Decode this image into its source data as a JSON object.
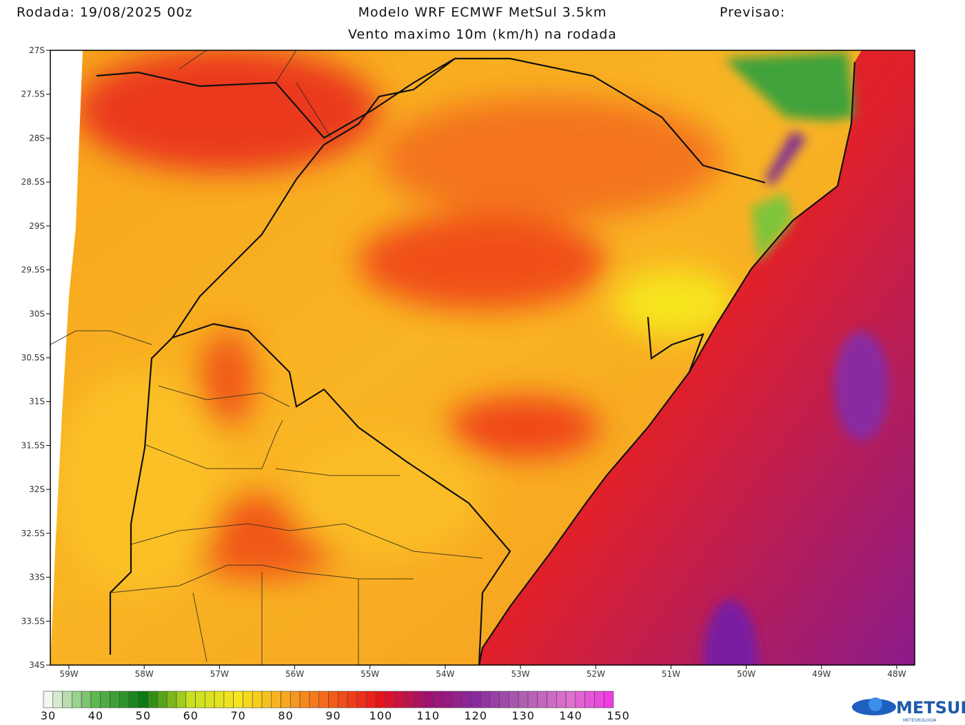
{
  "header": {
    "run": "Rodada: 19/08/2025 00z",
    "model": "Modelo WRF ECMWF MetSul 3.5km",
    "forecast": "Previsao:",
    "subtitle": "Vento maximo 10m (km/h) na rodada"
  },
  "map": {
    "lat_labels": [
      "27S",
      "27.5S",
      "28S",
      "28.5S",
      "29S",
      "29.5S",
      "30S",
      "30.5S",
      "31S",
      "31.5S",
      "32S",
      "32.5S",
      "33S",
      "33.5S",
      "34S"
    ],
    "lon_labels": [
      "59W",
      "58W",
      "57W",
      "56W",
      "55W",
      "54W",
      "53W",
      "52W",
      "51W",
      "50W",
      "49W",
      "48W"
    ]
  },
  "colorbar": {
    "ticks": [
      30,
      40,
      50,
      60,
      70,
      80,
      90,
      100,
      110,
      120,
      130,
      140,
      150
    ]
  },
  "logo": {
    "name": "METSUL",
    "tagline": "METEOROLOGIA"
  }
}
